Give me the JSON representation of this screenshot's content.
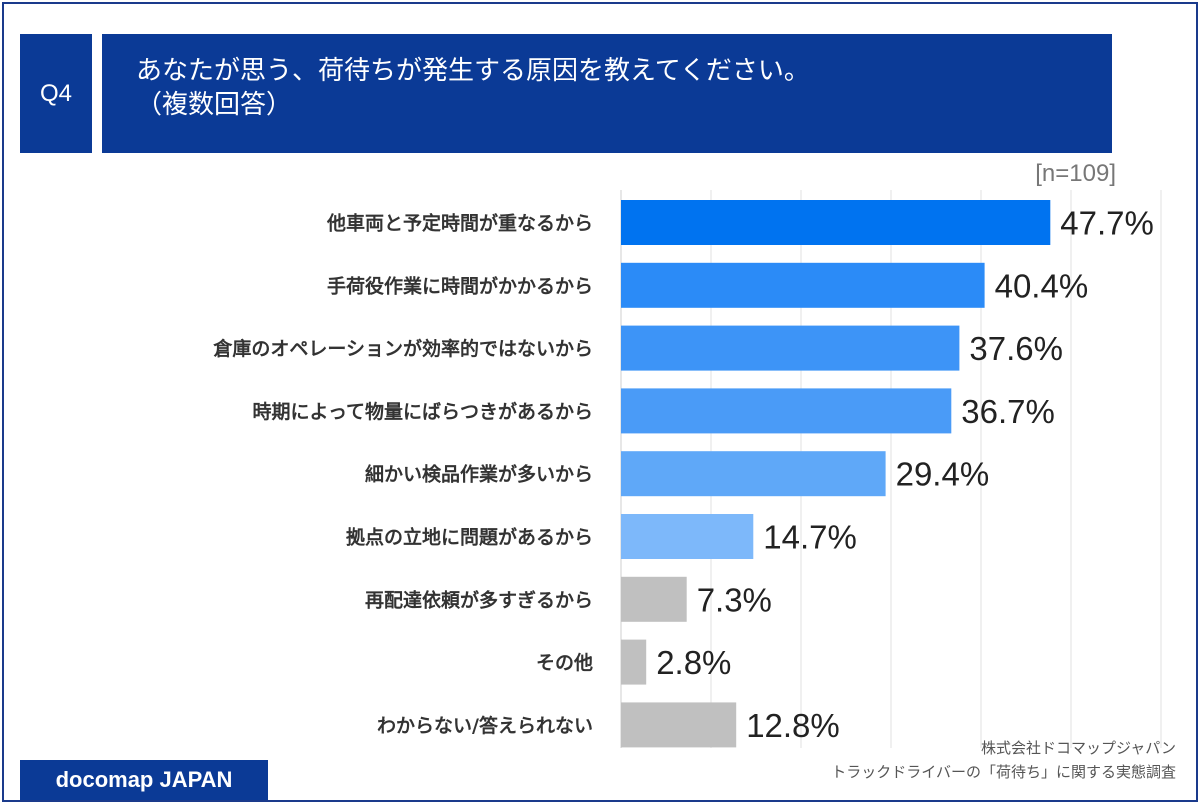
{
  "header": {
    "q_label": "Q4",
    "title_line1": "あなたが思う、荷待ちが発生する原因を教えてください。",
    "title_line2": "（複数回答）"
  },
  "n_label": "[n=109]",
  "colors": {
    "navy": "#0b3a96",
    "bar_shades": [
      "#0073f0",
      "#2b8bf7",
      "#3d94f7",
      "#4a9bf7",
      "#5fa8f8",
      "#7db8fa",
      "#c0c0c0",
      "#c0c0c0",
      "#c0c0c0"
    ]
  },
  "chart_data": {
    "type": "bar",
    "orientation": "horizontal",
    "categories": [
      "他車両と予定時間が重なるから",
      "手荷役作業に時間がかかるから",
      "倉庫のオペレーションが効率的ではないから",
      "時期によって物量にばらつきがあるから",
      "細かい検品作業が多いから",
      "拠点の立地に問題があるから",
      "再配達依頼が多すぎるから",
      "その他",
      "わからない/答えられない"
    ],
    "values": [
      47.7,
      40.4,
      37.6,
      36.7,
      29.4,
      14.7,
      7.3,
      2.8,
      12.8
    ],
    "value_labels": [
      "47.7%",
      "40.4%",
      "37.6%",
      "36.7%",
      "29.4%",
      "14.7%",
      "7.3%",
      "2.8%",
      "12.8%"
    ],
    "xlim": [
      0,
      60
    ],
    "grid": true
  },
  "footer": {
    "logo": "docomap JAPAN",
    "source_line1": "株式会社ドコマップジャパン",
    "source_line2": "トラックドライバーの「荷待ち」に関する実態調査"
  }
}
